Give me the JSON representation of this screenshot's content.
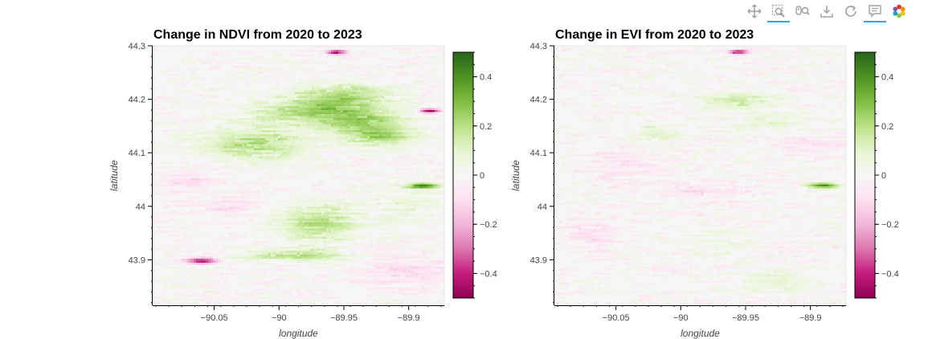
{
  "toolbar": {
    "tools": [
      {
        "name": "pan-tool",
        "icon": "pan-icon",
        "active": false
      },
      {
        "name": "box-zoom-tool",
        "icon": "box-zoom-icon",
        "active": true
      },
      {
        "name": "wheel-zoom-tool",
        "icon": "wheel-zoom-icon",
        "active": false
      },
      {
        "name": "save-tool",
        "icon": "save-icon",
        "active": false
      },
      {
        "name": "reset-tool",
        "icon": "reset-icon",
        "active": false
      },
      {
        "name": "hover-tool",
        "icon": "hover-icon",
        "active": true
      },
      {
        "name": "bokeh-logo",
        "icon": "bokeh-logo-icon",
        "active": false
      }
    ]
  },
  "chart_data": [
    {
      "type": "heatmap",
      "title": "Change in NDVI from 2020 to 2023",
      "xlabel": "longitude",
      "ylabel": "latitude",
      "xlim": [
        -90.0975,
        -89.8725
      ],
      "ylim": [
        43.815,
        44.3
      ],
      "xticks": [
        -90.05,
        -90,
        -89.95,
        -89.9
      ],
      "xtick_labels": [
        "−90.05",
        "−90",
        "−89.95",
        "−89.9"
      ],
      "yticks": [
        43.9,
        44,
        44.1,
        44.2,
        44.3
      ],
      "ytick_labels": [
        "43.9",
        "44",
        "44.1",
        "44.2",
        "44.3"
      ],
      "colorbar": {
        "range": [
          -0.5,
          0.5
        ],
        "ticks": [
          -0.4,
          -0.2,
          0,
          0.2,
          0.4
        ],
        "tick_labels": [
          "−0.4",
          "−0.2",
          "0",
          "0.2",
          "0.4"
        ],
        "colormap": "PiYG",
        "colors": [
          "#8e0152",
          "#c51b7d",
          "#de77ae",
          "#f1b6da",
          "#fde0ef",
          "#f7f7f7",
          "#e6f5d0",
          "#b8e186",
          "#7fbc41",
          "#4d9221",
          "#276419"
        ]
      },
      "features": [
        {
          "lon": -89.97,
          "lat": 44.18,
          "dlon": 0.045,
          "dlat": 0.025,
          "value": 0.25
        },
        {
          "lon": -90.02,
          "lat": 44.12,
          "dlon": 0.04,
          "dlat": 0.03,
          "value": 0.2
        },
        {
          "lon": -89.93,
          "lat": 44.15,
          "dlon": 0.03,
          "dlat": 0.025,
          "value": 0.22
        },
        {
          "lon": -89.95,
          "lat": 44.21,
          "dlon": 0.035,
          "dlat": 0.02,
          "value": 0.18
        },
        {
          "lon": -89.97,
          "lat": 43.97,
          "dlon": 0.03,
          "dlat": 0.035,
          "value": 0.2
        },
        {
          "lon": -89.99,
          "lat": 43.91,
          "dlon": 0.04,
          "dlat": 0.012,
          "value": 0.18
        },
        {
          "lon": -89.92,
          "lat": 44.13,
          "dlon": 0.025,
          "dlat": 0.015,
          "value": 0.12
        },
        {
          "lon": -90.07,
          "lat": 44.05,
          "dlon": 0.02,
          "dlat": 0.02,
          "value": -0.1
        },
        {
          "lon": -90.04,
          "lat": 44.0,
          "dlon": 0.03,
          "dlat": 0.02,
          "value": -0.08
        },
        {
          "lon": -90.06,
          "lat": 43.9,
          "dlon": 0.012,
          "dlat": 0.006,
          "value": -0.4
        },
        {
          "lon": -89.956,
          "lat": 44.29,
          "dlon": 0.008,
          "dlat": 0.004,
          "value": -0.45
        },
        {
          "lon": -89.885,
          "lat": 44.18,
          "dlon": 0.008,
          "dlat": 0.004,
          "value": -0.45
        },
        {
          "lon": -89.89,
          "lat": 44.04,
          "dlon": 0.012,
          "dlat": 0.005,
          "value": 0.4
        },
        {
          "lon": -89.9,
          "lat": 43.88,
          "dlon": 0.04,
          "dlat": 0.03,
          "value": -0.08
        },
        {
          "lon": -89.9,
          "lat": 44.0,
          "dlon": 0.03,
          "dlat": 0.04,
          "value": 0.06
        }
      ]
    },
    {
      "type": "heatmap",
      "title": "Change in EVI from 2020 to 2023",
      "xlabel": "longitude",
      "ylabel": "latitude",
      "xlim": [
        -90.0975,
        -89.8725
      ],
      "ylim": [
        43.815,
        44.3
      ],
      "xticks": [
        -90.05,
        -90,
        -89.95,
        -89.9
      ],
      "xtick_labels": [
        "−90.05",
        "−90",
        "−89.95",
        "−89.9"
      ],
      "yticks": [
        43.9,
        44,
        44.1,
        44.2,
        44.3
      ],
      "ytick_labels": [
        "43.9",
        "44",
        "44.1",
        "44.2",
        "44.3"
      ],
      "colorbar": {
        "range": [
          -0.5,
          0.5
        ],
        "ticks": [
          -0.4,
          -0.2,
          0,
          0.2,
          0.4
        ],
        "tick_labels": [
          "−0.4",
          "−0.2",
          "0",
          "0.2",
          "0.4"
        ],
        "colormap": "PiYG",
        "colors": [
          "#8e0152",
          "#c51b7d",
          "#de77ae",
          "#f1b6da",
          "#fde0ef",
          "#f7f7f7",
          "#e6f5d0",
          "#b8e186",
          "#7fbc41",
          "#4d9221",
          "#276419"
        ]
      },
      "features": [
        {
          "lon": -89.96,
          "lat": 44.2,
          "dlon": 0.03,
          "dlat": 0.015,
          "value": 0.15
        },
        {
          "lon": -90.02,
          "lat": 44.14,
          "dlon": 0.02,
          "dlat": 0.015,
          "value": 0.12
        },
        {
          "lon": -89.93,
          "lat": 44.16,
          "dlon": 0.03,
          "dlat": 0.02,
          "value": 0.08
        },
        {
          "lon": -89.98,
          "lat": 44.03,
          "dlon": 0.04,
          "dlat": 0.015,
          "value": -0.08
        },
        {
          "lon": -90.05,
          "lat": 44.08,
          "dlon": 0.03,
          "dlat": 0.03,
          "value": -0.06
        },
        {
          "lon": -90.07,
          "lat": 43.95,
          "dlon": 0.02,
          "dlat": 0.03,
          "value": -0.07
        },
        {
          "lon": -89.89,
          "lat": 44.04,
          "dlon": 0.012,
          "dlat": 0.005,
          "value": 0.4
        },
        {
          "lon": -89.956,
          "lat": 44.29,
          "dlon": 0.008,
          "dlat": 0.004,
          "value": -0.45
        },
        {
          "lon": -89.9,
          "lat": 44.12,
          "dlon": 0.03,
          "dlat": 0.015,
          "value": -0.08
        },
        {
          "lon": -89.93,
          "lat": 43.86,
          "dlon": 0.03,
          "dlat": 0.02,
          "value": 0.08
        },
        {
          "lon": -89.97,
          "lat": 43.93,
          "dlon": 0.03,
          "dlat": 0.03,
          "value": 0.04
        }
      ]
    }
  ]
}
